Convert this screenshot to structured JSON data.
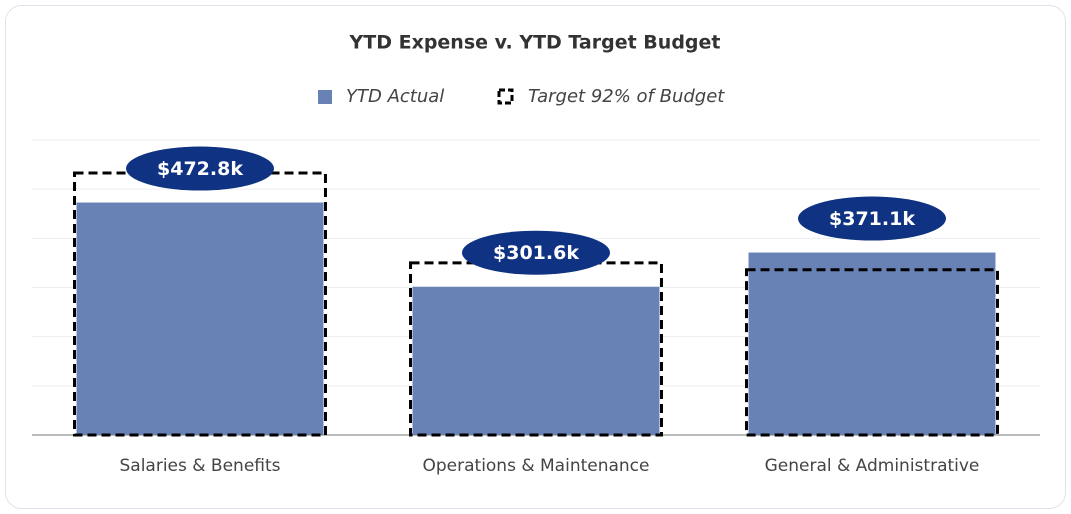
{
  "chart_data": {
    "type": "bar",
    "title": "YTD Expense v. YTD Target Budget",
    "categories": [
      "Salaries & Benefits",
      "Operations & Maintenance",
      "General & Administrative"
    ],
    "series": [
      {
        "name": "YTD Actual",
        "color": "#6882b5",
        "values": [
          472.8,
          301.6,
          371.1
        ],
        "value_labels": [
          "$472.8k",
          "$301.6k",
          "$371.1k"
        ]
      },
      {
        "name": "Target 92% of Budget",
        "color": "#000000",
        "values": [
          533,
          350,
          336
        ]
      }
    ],
    "ylim": [
      0,
      600
    ],
    "yticks": [
      0,
      100,
      200,
      300,
      400,
      500,
      600
    ],
    "grid": true,
    "legend": "top"
  }
}
